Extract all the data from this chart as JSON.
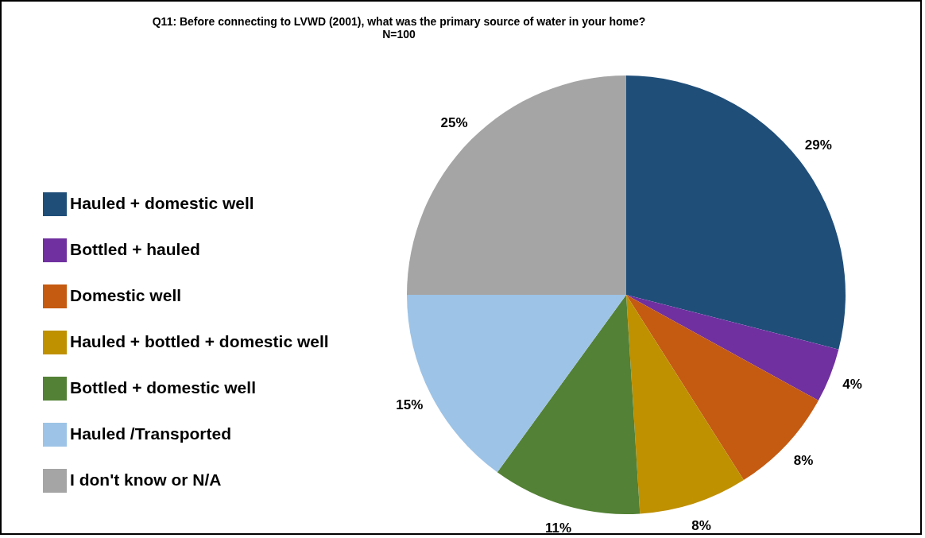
{
  "chart_data": {
    "type": "pie",
    "title": "Q11: Before connecting to LVWD (2001), what was the primary source of water in your home?",
    "subtitle": "N=100",
    "categories": [
      "Hauled + domestic well",
      "Bottled + hauled",
      "Domestic well",
      "Hauled + bottled + domestic well",
      "Bottled + domestic well",
      "Hauled /Transported",
      "I don't know or N/A"
    ],
    "values": [
      29,
      4,
      8,
      8,
      11,
      15,
      25
    ],
    "colors": [
      "#1f4e79",
      "#7030a0",
      "#c55a11",
      "#bf9000",
      "#538135",
      "#9dc3e6",
      "#a5a5a5"
    ],
    "value_labels": [
      "29%",
      "4%",
      "8%",
      "8%",
      "11%",
      "15%",
      "25%"
    ],
    "legend": "left"
  }
}
